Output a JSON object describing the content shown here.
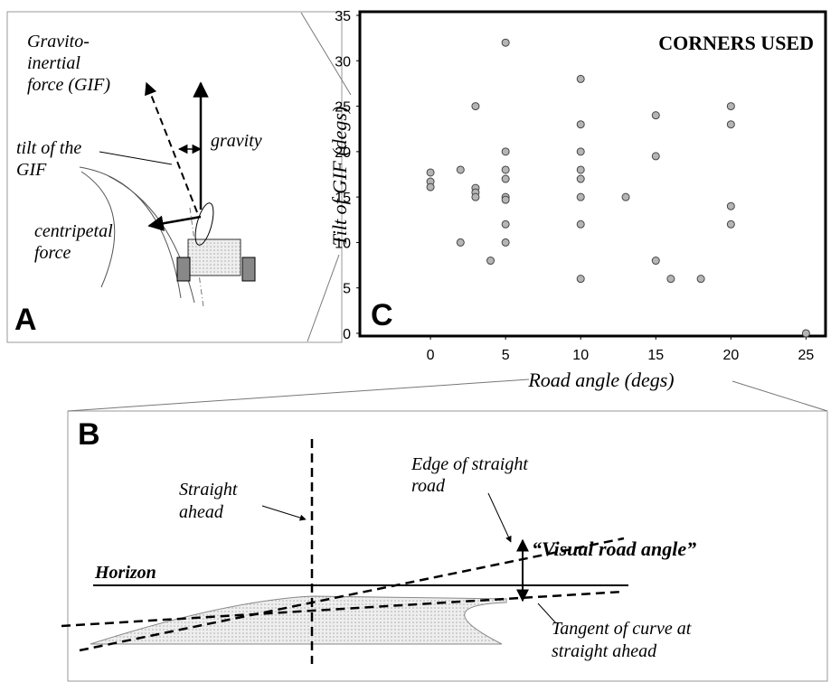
{
  "chart_data": {
    "type": "scatter",
    "title": "CORNERS USED",
    "panel_label": "C",
    "x_label": "Road angle (degs)",
    "y_label": "Tilt of GIF (degs)",
    "x": [
      0,
      0,
      0,
      2,
      2,
      3,
      3,
      3,
      3,
      4,
      5,
      5,
      5,
      5,
      5,
      5,
      5,
      5,
      10,
      10,
      10,
      10,
      10,
      10,
      10,
      10,
      13,
      15,
      15,
      15,
      16,
      18,
      20,
      20,
      20,
      20,
      25
    ],
    "y": [
      17.7,
      16.7,
      16.1,
      18,
      10,
      25,
      16,
      15.5,
      15,
      8,
      32,
      20,
      18,
      17,
      15,
      14.7,
      12,
      10,
      28,
      23,
      20,
      18,
      17,
      15,
      12,
      6,
      15,
      24,
      19.5,
      8,
      6,
      6,
      25,
      23,
      14,
      12,
      0
    ],
    "xlim": [
      -4.7,
      26.3
    ],
    "ylim": [
      -0.3,
      35.4
    ],
    "xticks": [
      0,
      5,
      10,
      15,
      20,
      25
    ],
    "yticks": [
      0,
      5,
      10,
      15,
      20,
      25,
      30,
      35
    ],
    "color": "#b5b5b5"
  },
  "panel_a": {
    "label": "A",
    "gif_label": [
      "Gravito-",
      "inertial",
      "force (GIF)"
    ],
    "gravity_label": "gravity",
    "tilt_label": [
      "tilt of the",
      "GIF"
    ],
    "centripetal_label": [
      "centripetal",
      "force"
    ]
  },
  "panel_b": {
    "label": "B",
    "horizon_label": "Horizon",
    "straight_label": [
      "Straight",
      "ahead"
    ],
    "edge_label": [
      "Edge of straight",
      "road"
    ],
    "angle_label": "“Visual road angle”",
    "tangent_label": [
      "Tangent of curve at",
      "straight ahead"
    ]
  }
}
